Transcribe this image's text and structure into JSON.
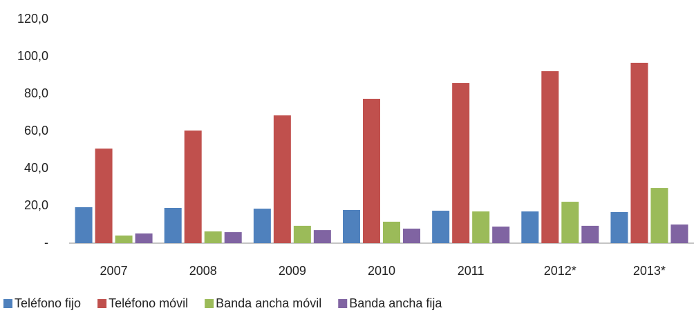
{
  "chart_data": {
    "type": "bar",
    "categories": [
      "2007",
      "2008",
      "2009",
      "2010",
      "2011",
      "2012*",
      "2013*"
    ],
    "series": [
      {
        "name": "Teléfono fijo",
        "color": "#4f81bd",
        "values": [
          19.3,
          18.9,
          18.5,
          17.8,
          17.4,
          17.0,
          16.7
        ]
      },
      {
        "name": "Teléfono móvil",
        "color": "#c0504d",
        "values": [
          50.7,
          60.4,
          68.5,
          77.4,
          85.9,
          92.2,
          96.7
        ]
      },
      {
        "name": "Banda ancha móvil",
        "color": "#9bbb59",
        "values": [
          4.1,
          6.3,
          9.3,
          11.5,
          17.0,
          22.2,
          29.6
        ]
      },
      {
        "name": "Banda ancha fija",
        "color": "#8064a2",
        "values": [
          5.2,
          5.9,
          7.0,
          7.8,
          8.9,
          9.3,
          10.0
        ]
      }
    ],
    "ylim": [
      0,
      120
    ],
    "yticks": [
      {
        "value": 0,
        "label": "-"
      },
      {
        "value": 20,
        "label": "20,0"
      },
      {
        "value": 40,
        "label": "40,0"
      },
      {
        "value": 60,
        "label": "60,0"
      },
      {
        "value": 80,
        "label": "80,0"
      },
      {
        "value": 100,
        "label": "100,0"
      },
      {
        "value": 120,
        "label": "120,0"
      }
    ],
    "legend": "bottom"
  }
}
